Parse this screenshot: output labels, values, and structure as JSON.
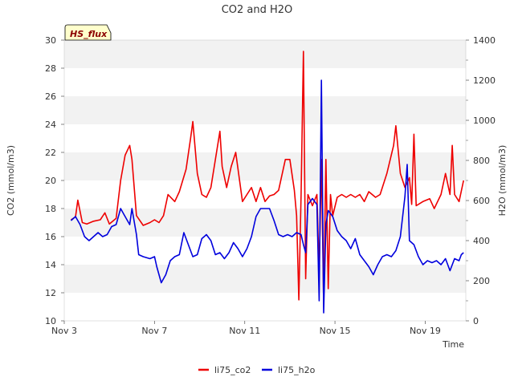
{
  "chart_data": {
    "type": "line",
    "title": "CO2 and H2O",
    "xlabel": "Time",
    "ylabel_left": "CO2 (mmol/m3)",
    "ylabel_right": "H2O (mmol/m3)",
    "badge": "HS_flux",
    "x_unit": "days since Nov 1",
    "xlim": [
      3.0,
      20.8
    ],
    "ylim_left": [
      10,
      30
    ],
    "ylim_right": [
      0,
      1400
    ],
    "x_ticks": [
      {
        "value": 3,
        "label": "Nov 3"
      },
      {
        "value": 7,
        "label": "Nov 7"
      },
      {
        "value": 11,
        "label": "Nov 11"
      },
      {
        "value": 15,
        "label": "Nov 15"
      },
      {
        "value": 19,
        "label": "Nov 19"
      }
    ],
    "y_ticks_left": [
      10,
      12,
      14,
      16,
      18,
      20,
      22,
      24,
      26,
      28,
      30
    ],
    "y_ticks_right": [
      0,
      200,
      400,
      600,
      800,
      1000,
      1200,
      1400
    ],
    "series": [
      {
        "name": "li75_co2",
        "axis": "left",
        "color": "#ee0000",
        "points": [
          [
            3.3,
            17.2
          ],
          [
            3.5,
            17.4
          ],
          [
            3.6,
            18.6
          ],
          [
            3.8,
            17.0
          ],
          [
            4.0,
            16.9
          ],
          [
            4.3,
            17.1
          ],
          [
            4.6,
            17.2
          ],
          [
            4.8,
            17.7
          ],
          [
            5.0,
            16.9
          ],
          [
            5.3,
            17.3
          ],
          [
            5.5,
            20.0
          ],
          [
            5.7,
            21.8
          ],
          [
            5.9,
            22.5
          ],
          [
            6.0,
            21.5
          ],
          [
            6.2,
            17.5
          ],
          [
            6.5,
            16.8
          ],
          [
            6.8,
            17.0
          ],
          [
            7.0,
            17.2
          ],
          [
            7.2,
            17.0
          ],
          [
            7.4,
            17.5
          ],
          [
            7.6,
            19.0
          ],
          [
            7.9,
            18.5
          ],
          [
            8.1,
            19.2
          ],
          [
            8.4,
            20.8
          ],
          [
            8.6,
            23.0
          ],
          [
            8.7,
            24.2
          ],
          [
            8.9,
            20.5
          ],
          [
            9.1,
            19.0
          ],
          [
            9.3,
            18.8
          ],
          [
            9.5,
            19.5
          ],
          [
            9.7,
            21.5
          ],
          [
            9.9,
            23.5
          ],
          [
            10.0,
            21.0
          ],
          [
            10.2,
            19.5
          ],
          [
            10.4,
            21.0
          ],
          [
            10.6,
            22.0
          ],
          [
            10.9,
            18.5
          ],
          [
            11.1,
            19.0
          ],
          [
            11.3,
            19.5
          ],
          [
            11.5,
            18.5
          ],
          [
            11.7,
            19.5
          ],
          [
            11.9,
            18.5
          ],
          [
            12.1,
            18.9
          ],
          [
            12.3,
            19.0
          ],
          [
            12.5,
            19.3
          ],
          [
            12.8,
            21.5
          ],
          [
            13.0,
            21.5
          ],
          [
            13.2,
            19.3
          ],
          [
            13.3,
            17.5
          ],
          [
            13.4,
            11.5
          ],
          [
            13.5,
            19.0
          ],
          [
            13.6,
            29.2
          ],
          [
            13.7,
            13.0
          ],
          [
            13.8,
            19.0
          ],
          [
            14.0,
            18.2
          ],
          [
            14.2,
            19.0
          ],
          [
            14.3,
            13.5
          ],
          [
            14.4,
            21.5
          ],
          [
            14.5,
            11.2
          ],
          [
            14.6,
            21.5
          ],
          [
            14.7,
            12.3
          ],
          [
            14.8,
            19.0
          ],
          [
            14.9,
            17.5
          ],
          [
            15.1,
            18.8
          ],
          [
            15.3,
            19.0
          ],
          [
            15.5,
            18.8
          ],
          [
            15.7,
            19.0
          ],
          [
            15.9,
            18.8
          ],
          [
            16.1,
            19.0
          ],
          [
            16.3,
            18.5
          ],
          [
            16.5,
            19.2
          ],
          [
            16.8,
            18.8
          ],
          [
            17.0,
            19.0
          ],
          [
            17.3,
            20.5
          ],
          [
            17.6,
            22.5
          ],
          [
            17.7,
            23.9
          ],
          [
            17.9,
            20.5
          ],
          [
            18.1,
            19.5
          ],
          [
            18.3,
            20.2
          ],
          [
            18.4,
            18.3
          ],
          [
            18.5,
            23.3
          ],
          [
            18.6,
            18.2
          ],
          [
            18.9,
            18.5
          ],
          [
            19.2,
            18.7
          ],
          [
            19.4,
            18.0
          ],
          [
            19.7,
            19.0
          ],
          [
            19.9,
            20.5
          ],
          [
            20.1,
            19.0
          ],
          [
            20.2,
            22.5
          ],
          [
            20.3,
            19.0
          ],
          [
            20.5,
            18.5
          ],
          [
            20.7,
            20.0
          ]
        ]
      },
      {
        "name": "li75_h2o",
        "axis": "right",
        "color": "#0000dd",
        "points": [
          [
            3.3,
            500
          ],
          [
            3.5,
            520
          ],
          [
            3.7,
            480
          ],
          [
            3.9,
            420
          ],
          [
            4.1,
            400
          ],
          [
            4.3,
            420
          ],
          [
            4.5,
            440
          ],
          [
            4.7,
            420
          ],
          [
            4.9,
            430
          ],
          [
            5.1,
            470
          ],
          [
            5.3,
            480
          ],
          [
            5.5,
            560
          ],
          [
            5.7,
            520
          ],
          [
            5.9,
            480
          ],
          [
            6.0,
            560
          ],
          [
            6.2,
            430
          ],
          [
            6.3,
            330
          ],
          [
            6.5,
            320
          ],
          [
            6.8,
            310
          ],
          [
            7.0,
            320
          ],
          [
            7.1,
            270
          ],
          [
            7.3,
            190
          ],
          [
            7.5,
            230
          ],
          [
            7.7,
            300
          ],
          [
            7.9,
            320
          ],
          [
            8.1,
            330
          ],
          [
            8.3,
            440
          ],
          [
            8.5,
            380
          ],
          [
            8.7,
            320
          ],
          [
            8.9,
            330
          ],
          [
            9.1,
            410
          ],
          [
            9.3,
            430
          ],
          [
            9.5,
            400
          ],
          [
            9.7,
            330
          ],
          [
            9.9,
            340
          ],
          [
            10.1,
            310
          ],
          [
            10.3,
            340
          ],
          [
            10.5,
            390
          ],
          [
            10.7,
            360
          ],
          [
            10.9,
            320
          ],
          [
            11.1,
            360
          ],
          [
            11.3,
            420
          ],
          [
            11.5,
            520
          ],
          [
            11.7,
            560
          ],
          [
            11.9,
            560
          ],
          [
            12.1,
            560
          ],
          [
            12.3,
            500
          ],
          [
            12.5,
            430
          ],
          [
            12.7,
            420
          ],
          [
            12.9,
            430
          ],
          [
            13.1,
            420
          ],
          [
            13.3,
            440
          ],
          [
            13.5,
            430
          ],
          [
            13.6,
            380
          ],
          [
            13.7,
            340
          ],
          [
            13.8,
            580
          ],
          [
            14.0,
            610
          ],
          [
            14.2,
            580
          ],
          [
            14.3,
            100
          ],
          [
            14.4,
            1200
          ],
          [
            14.5,
            40
          ],
          [
            14.6,
            480
          ],
          [
            14.7,
            550
          ],
          [
            14.9,
            520
          ],
          [
            15.1,
            450
          ],
          [
            15.3,
            420
          ],
          [
            15.5,
            400
          ],
          [
            15.7,
            360
          ],
          [
            15.9,
            410
          ],
          [
            16.1,
            330
          ],
          [
            16.3,
            300
          ],
          [
            16.5,
            270
          ],
          [
            16.7,
            230
          ],
          [
            16.9,
            280
          ],
          [
            17.1,
            320
          ],
          [
            17.3,
            330
          ],
          [
            17.5,
            320
          ],
          [
            17.7,
            350
          ],
          [
            17.9,
            420
          ],
          [
            18.1,
            620
          ],
          [
            18.2,
            780
          ],
          [
            18.3,
            400
          ],
          [
            18.5,
            380
          ],
          [
            18.7,
            320
          ],
          [
            18.9,
            280
          ],
          [
            19.1,
            300
          ],
          [
            19.3,
            290
          ],
          [
            19.5,
            300
          ],
          [
            19.7,
            280
          ],
          [
            19.9,
            310
          ],
          [
            20.1,
            250
          ],
          [
            20.3,
            310
          ],
          [
            20.5,
            300
          ],
          [
            20.6,
            330
          ],
          [
            20.7,
            340
          ]
        ]
      }
    ],
    "legend": [
      "li75_co2",
      "li75_h2o"
    ],
    "legend_position": "bottom-center",
    "grid": "horizontal bands"
  }
}
